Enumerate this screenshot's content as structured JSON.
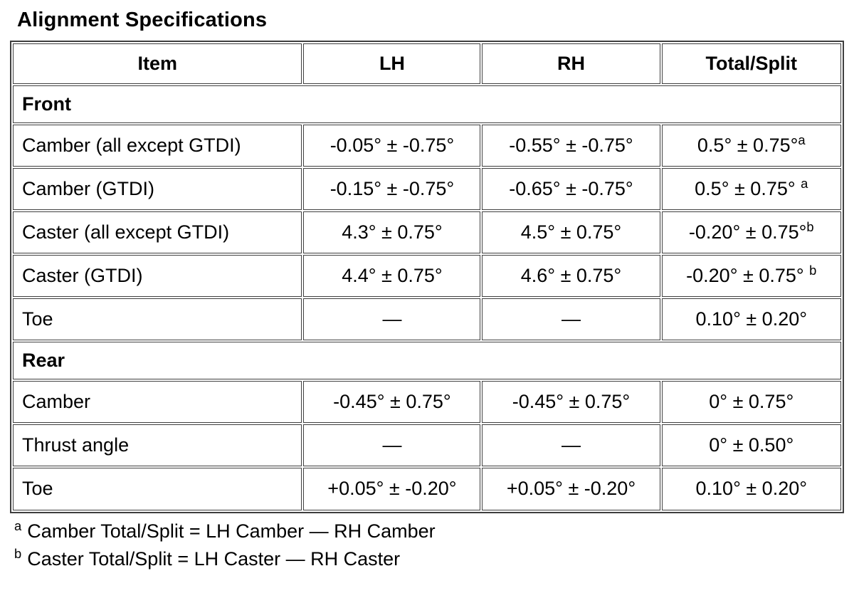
{
  "title": "Alignment Specifications",
  "table": {
    "headers": [
      "Item",
      "LH",
      "RH",
      "Total/Split"
    ],
    "sections": [
      {
        "label": "Front",
        "rows": [
          {
            "item": "Camber (all except GTDI)",
            "lh": "-0.05° ± -0.75°",
            "rh": "-0.55° ± -0.75°",
            "total": "0.5° ± 0.75°",
            "total_sup": "a"
          },
          {
            "item": "Camber (GTDI)",
            "lh": "-0.15° ± -0.75°",
            "rh": "-0.65° ± -0.75°",
            "total": "0.5° ± 0.75° ",
            "total_sup": "a"
          },
          {
            "item": "Caster (all except GTDI)",
            "lh": "4.3° ± 0.75°",
            "rh": "4.5° ± 0.75°",
            "total": "-0.20° ± 0.75°",
            "total_sup": "b"
          },
          {
            "item": "Caster (GTDI)",
            "lh": "4.4° ± 0.75°",
            "rh": "4.6° ± 0.75°",
            "total": "-0.20° ± 0.75° ",
            "total_sup": "b"
          },
          {
            "item": "Toe",
            "lh": "—",
            "rh": "—",
            "total": "0.10° ± 0.20°"
          }
        ]
      },
      {
        "label": "Rear",
        "rows": [
          {
            "item": "Camber",
            "lh": "-0.45° ± 0.75°",
            "rh": "-0.45° ± 0.75°",
            "total": "0° ± 0.75°"
          },
          {
            "item": "Thrust angle",
            "lh": "—",
            "rh": "—",
            "total": "0° ± 0.50°"
          },
          {
            "item": "Toe",
            "lh": "+0.05° ± -0.20°",
            "rh": "+0.05° ± -0.20°",
            "total": "0.10° ± 0.20°"
          }
        ]
      }
    ]
  },
  "footnotes": [
    {
      "marker": "a",
      "text": "Camber Total/Split = LH Camber — RH Camber"
    },
    {
      "marker": "b",
      "text": "Caster Total/Split = LH Caster — RH Caster"
    }
  ]
}
